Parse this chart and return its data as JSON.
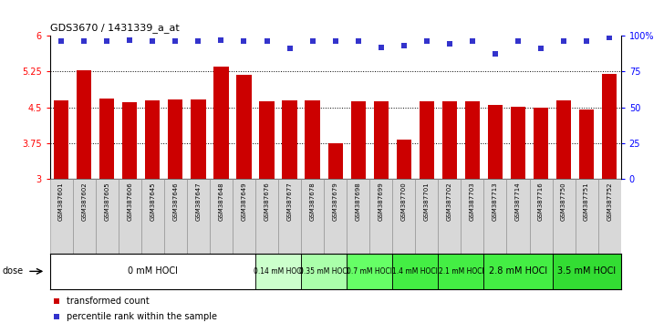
{
  "title": "GDS3670 / 1431339_a_at",
  "samples": [
    "GSM387601",
    "GSM387602",
    "GSM387605",
    "GSM387606",
    "GSM387645",
    "GSM387646",
    "GSM387647",
    "GSM387648",
    "GSM387649",
    "GSM387676",
    "GSM387677",
    "GSM387678",
    "GSM387679",
    "GSM387698",
    "GSM387699",
    "GSM387700",
    "GSM387701",
    "GSM387702",
    "GSM387703",
    "GSM387713",
    "GSM387714",
    "GSM387716",
    "GSM387750",
    "GSM387751",
    "GSM387752"
  ],
  "bar_values": [
    4.65,
    5.27,
    4.68,
    4.6,
    4.65,
    4.67,
    4.67,
    5.35,
    5.18,
    4.62,
    4.65,
    4.65,
    3.75,
    4.62,
    4.62,
    3.83,
    4.62,
    4.62,
    4.62,
    4.55,
    4.52,
    4.5,
    4.65,
    4.45,
    5.2
  ],
  "percentile_values": [
    96,
    96,
    96,
    97,
    96,
    96,
    96,
    97,
    96,
    96,
    91,
    96,
    96,
    96,
    92,
    93,
    96,
    94,
    96,
    87,
    96,
    91,
    96,
    96,
    99
  ],
  "dose_groups": [
    {
      "label": "0 mM HOCl",
      "start": 0,
      "end": 9,
      "color": "#ffffff"
    },
    {
      "label": "0.14 mM HOCl",
      "start": 9,
      "end": 11,
      "color": "#ccffcc"
    },
    {
      "label": "0.35 mM HOCl",
      "start": 11,
      "end": 13,
      "color": "#aaffaa"
    },
    {
      "label": "0.7 mM HOCl",
      "start": 13,
      "end": 15,
      "color": "#66ff66"
    },
    {
      "label": "1.4 mM HOCl",
      "start": 15,
      "end": 17,
      "color": "#44ee44"
    },
    {
      "label": "2.1 mM HOCl",
      "start": 17,
      "end": 19,
      "color": "#44ee44"
    },
    {
      "label": "2.8 mM HOCl",
      "start": 19,
      "end": 22,
      "color": "#44ee44"
    },
    {
      "label": "3.5 mM HOCl",
      "start": 22,
      "end": 25,
      "color": "#33dd33"
    }
  ],
  "bar_color": "#cc0000",
  "dot_color": "#3333cc",
  "ylim": [
    3.0,
    6.0
  ],
  "yticks": [
    3.0,
    3.75,
    4.5,
    5.25,
    6.0
  ],
  "ytick_labels": [
    "3",
    "3.75",
    "4.5",
    "5.25",
    "6"
  ],
  "right_yticks": [
    0,
    25,
    50,
    75,
    100
  ],
  "right_ytick_labels": [
    "0",
    "25",
    "50",
    "75",
    "100%"
  ],
  "hline_values": [
    3.75,
    4.5,
    5.25
  ],
  "background_color": "#ffffff"
}
